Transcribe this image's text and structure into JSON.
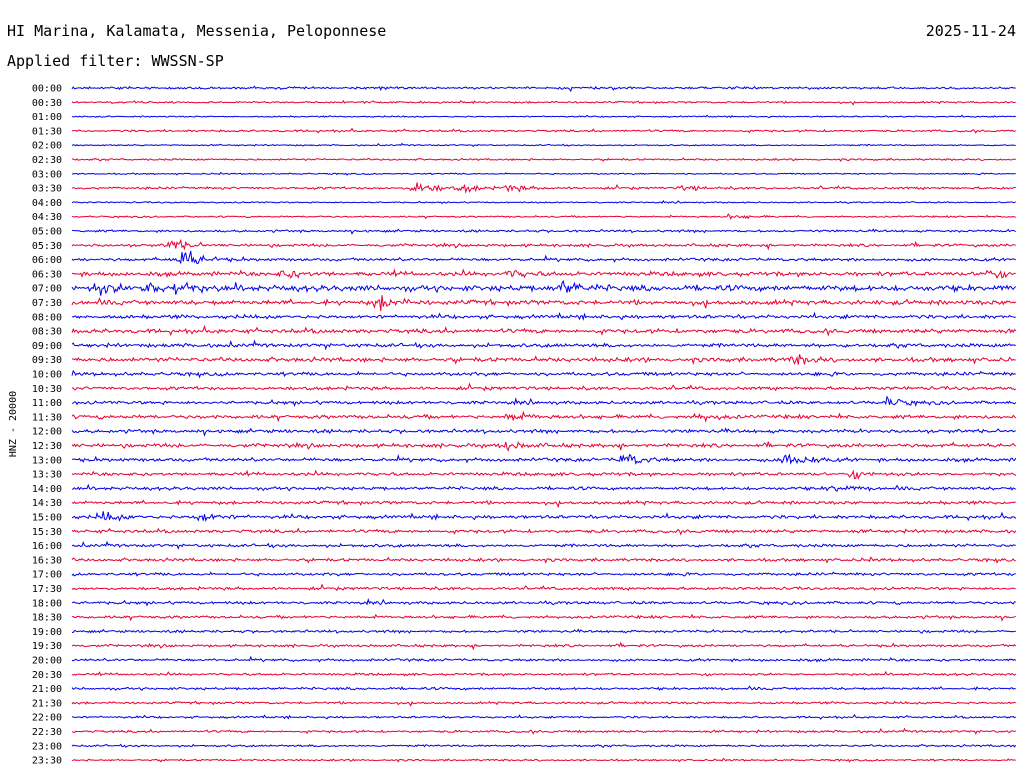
{
  "header": {
    "station": "HI Marina, Kalamata, Messenia, Peloponnese",
    "date": "2025-11-24",
    "filter_label": "Applied filter: WWSSN-SP"
  },
  "chart_data": {
    "type": "line",
    "ylabel": "HNZ - 20000",
    "row_labels": [
      "00:00",
      "00:30",
      "01:00",
      "01:30",
      "02:00",
      "02:30",
      "03:00",
      "03:30",
      "04:00",
      "04:30",
      "05:00",
      "05:30",
      "06:00",
      "06:30",
      "07:00",
      "07:30",
      "08:00",
      "08:30",
      "09:00",
      "09:30",
      "10:00",
      "10:30",
      "11:00",
      "11:30",
      "12:00",
      "12:30",
      "13:00",
      "13:30",
      "14:00",
      "14:30",
      "15:00",
      "15:30",
      "16:00",
      "16:30",
      "17:00",
      "17:30",
      "18:00",
      "18:30",
      "19:00",
      "19:30",
      "20:00",
      "20:30",
      "21:00",
      "21:30",
      "22:00",
      "22:30",
      "23:00",
      "23:30"
    ],
    "colors": [
      "#0000e6",
      "#e60033"
    ],
    "row_minutes": 30,
    "noise_amplitude": [
      1.0,
      0.8,
      0.6,
      0.9,
      0.6,
      0.8,
      0.6,
      1.0,
      0.6,
      0.7,
      1.0,
      1.2,
      1.3,
      1.8,
      2.5,
      2.0,
      1.6,
      1.8,
      1.6,
      1.8,
      1.5,
      1.4,
      1.4,
      1.6,
      1.5,
      1.6,
      1.5,
      1.4,
      1.4,
      1.4,
      1.5,
      1.4,
      1.3,
      1.3,
      1.2,
      1.2,
      1.2,
      1.2,
      1.1,
      1.1,
      1.1,
      1.0,
      1.1,
      1.0,
      0.9,
      1.0,
      0.9,
      0.8
    ],
    "events": [
      {
        "row": "03:30",
        "minute": 11.0,
        "amplitude": 7
      },
      {
        "row": "03:30",
        "minute": 12.5,
        "amplitude": 3
      },
      {
        "row": "03:30",
        "minute": 13.9,
        "amplitude": 3
      },
      {
        "row": "03:30",
        "minute": 19.5,
        "amplitude": 2
      },
      {
        "row": "04:30",
        "minute": 21.0,
        "amplitude": 2
      },
      {
        "row": "05:30",
        "minute": 3.2,
        "amplitude": 5
      },
      {
        "row": "06:00",
        "minute": 3.5,
        "amplitude": 10
      },
      {
        "row": "06:30",
        "minute": 6.8,
        "amplitude": 4
      },
      {
        "row": "06:30",
        "minute": 14.0,
        "amplitude": 3
      },
      {
        "row": "06:30",
        "minute": 29.0,
        "amplitude": 4
      },
      {
        "row": "07:00",
        "minute": 0.8,
        "amplitude": 5
      },
      {
        "row": "07:00",
        "minute": 2.5,
        "amplitude": 6
      },
      {
        "row": "07:00",
        "minute": 3.3,
        "amplitude": 5
      },
      {
        "row": "07:00",
        "minute": 15.6,
        "amplitude": 6
      },
      {
        "row": "07:30",
        "minute": 9.8,
        "amplitude": 6
      },
      {
        "row": "09:30",
        "minute": 23.0,
        "amplitude": 4
      },
      {
        "row": "11:00",
        "minute": 25.9,
        "amplitude": 4
      },
      {
        "row": "11:30",
        "minute": 14.0,
        "amplitude": 4
      },
      {
        "row": "11:30",
        "minute": 20.0,
        "amplitude": 3
      },
      {
        "row": "12:30",
        "minute": 13.8,
        "amplitude": 4
      },
      {
        "row": "13:00",
        "minute": 17.6,
        "amplitude": 6
      },
      {
        "row": "13:00",
        "minute": 22.8,
        "amplitude": 8
      },
      {
        "row": "13:30",
        "minute": 24.9,
        "amplitude": 3
      },
      {
        "row": "14:00",
        "minute": 24.2,
        "amplitude": 3
      },
      {
        "row": "15:00",
        "minute": 1.0,
        "amplitude": 4
      },
      {
        "row": "15:00",
        "minute": 4.1,
        "amplitude": 5
      }
    ]
  }
}
